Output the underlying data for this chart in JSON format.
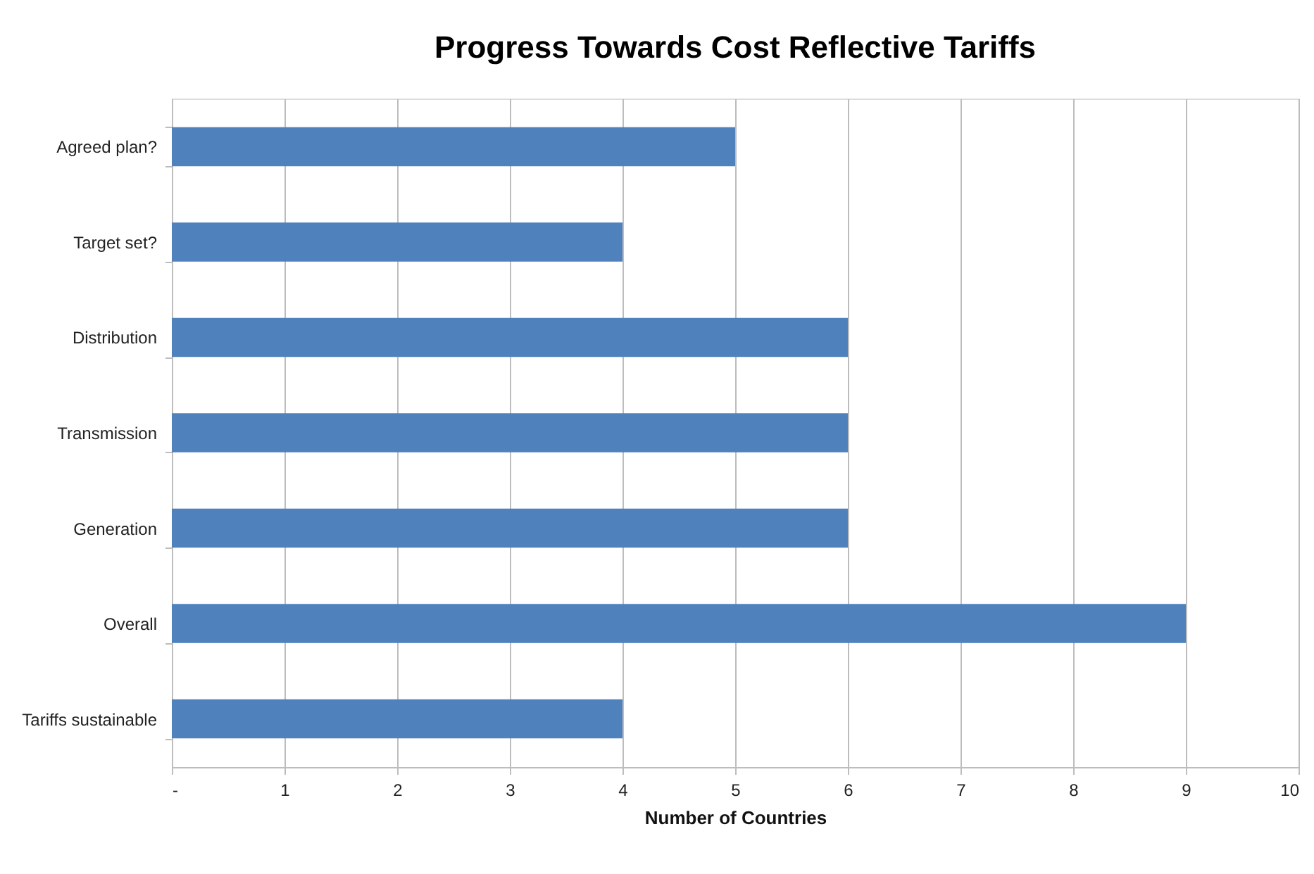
{
  "chart_data": {
    "type": "bar",
    "orientation": "horizontal",
    "title": "Progress Towards Cost Reflective Tariffs",
    "xlabel": "Number of Countries",
    "categories": [
      "Agreed plan?",
      "Target set?",
      "Distribution",
      "Transmission",
      "Generation",
      "Overall",
      "Tariffs sustainable"
    ],
    "values": [
      5,
      4,
      6,
      6,
      6,
      9,
      4
    ],
    "color": "#4f81bd",
    "xlim": [
      0,
      10
    ],
    "xticks": [
      {
        "value": 0,
        "label": "-"
      },
      1,
      2,
      3,
      4,
      5,
      6,
      7,
      8,
      9,
      10
    ],
    "grid": "x"
  }
}
